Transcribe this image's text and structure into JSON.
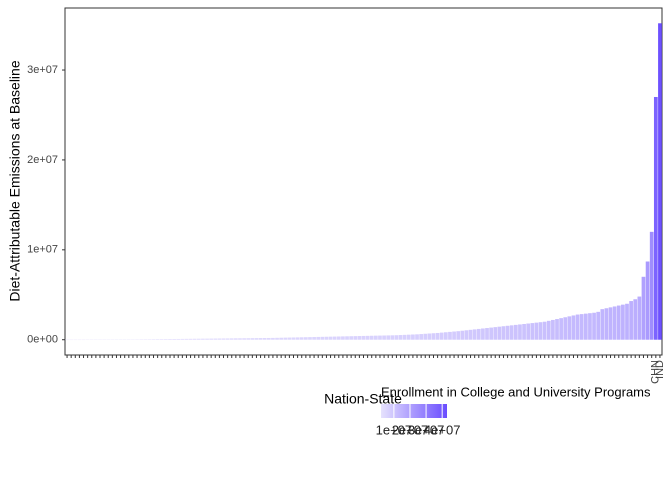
{
  "chart_data": {
    "type": "bar",
    "x_label": "Nation-State",
    "y_label": "Diet-Attributable Emissions at Baseline",
    "categories": [
      null,
      null,
      null,
      null,
      null,
      null,
      null,
      null,
      null,
      null,
      null,
      null,
      null,
      null,
      null,
      null,
      null,
      null,
      null,
      null,
      null,
      null,
      null,
      null,
      null,
      null,
      null,
      null,
      null,
      null,
      null,
      null,
      null,
      null,
      null,
      null,
      null,
      null,
      null,
      null,
      null,
      null,
      null,
      null,
      null,
      null,
      null,
      null,
      null,
      null,
      null,
      null,
      null,
      null,
      null,
      null,
      null,
      null,
      null,
      null,
      null,
      null,
      null,
      null,
      null,
      null,
      null,
      null,
      null,
      null,
      null,
      null,
      null,
      null,
      null,
      null,
      null,
      null,
      null,
      null,
      null,
      null,
      null,
      null,
      null,
      null,
      null,
      null,
      null,
      null,
      null,
      null,
      null,
      null,
      null,
      null,
      null,
      null,
      null,
      null,
      null,
      null,
      null,
      null,
      null,
      null,
      null,
      null,
      null,
      null,
      null,
      null,
      null,
      null,
      null,
      null,
      null,
      null,
      null,
      null,
      null,
      null,
      null,
      null,
      null,
      null,
      null,
      null,
      null,
      null,
      null,
      null,
      null,
      null,
      null,
      null,
      null,
      null,
      null,
      null,
      null,
      null,
      null,
      "CHN",
      "IND"
    ],
    "values": [
      0,
      0,
      0,
      0,
      0,
      1000,
      2000,
      3000,
      5000,
      8000,
      10000,
      12000,
      15000,
      18000,
      20000,
      25000,
      30000,
      35000,
      40000,
      45000,
      50000,
      55000,
      60000,
      65000,
      70000,
      75000,
      80000,
      85000,
      90000,
      95000,
      100000,
      105000,
      110000,
      115000,
      120000,
      125000,
      130000,
      135000,
      140000,
      145000,
      150000,
      155000,
      160000,
      165000,
      170000,
      175000,
      180000,
      185000,
      190000,
      195000,
      200000,
      210000,
      220000,
      230000,
      240000,
      250000,
      260000,
      270000,
      280000,
      290000,
      300000,
      310000,
      320000,
      330000,
      340000,
      350000,
      360000,
      370000,
      380000,
      390000,
      400000,
      410000,
      420000,
      430000,
      440000,
      450000,
      460000,
      470000,
      480000,
      490000,
      500000,
      520000,
      540000,
      560000,
      580000,
      600000,
      630000,
      660000,
      690000,
      720000,
      750000,
      790000,
      830000,
      870000,
      910000,
      950000,
      1000000,
      1050000,
      1100000,
      1150000,
      1200000,
      1250000,
      1300000,
      1350000,
      1400000,
      1450000,
      1500000,
      1550000,
      1600000,
      1650000,
      1700000,
      1750000,
      1800000,
      1850000,
      1900000,
      1950000,
      2000000,
      2100000,
      2200000,
      2300000,
      2400000,
      2500000,
      2600000,
      2700000,
      2800000,
      2850000,
      2900000,
      2950000,
      3000000,
      3100000,
      3400000,
      3500000,
      3600000,
      3700000,
      3800000,
      3900000,
      4000000,
      4300000,
      4500000,
      4800000,
      7000000,
      8700000,
      12000000,
      27000000,
      35200000
    ],
    "ylim": [
      -1700000,
      36900000
    ],
    "yticks": [
      {
        "value": 0,
        "label": "0e+00"
      },
      {
        "value": 10000000,
        "label": "1e+07"
      },
      {
        "value": 20000000,
        "label": "2e+07"
      },
      {
        "value": 30000000,
        "label": "3e+07"
      }
    ],
    "legend": {
      "title": "Enrollment in College and University Programs",
      "low_color": "#e6e2fd",
      "high_color": "#6a4dff",
      "lim": [
        2000000,
        43000000
      ],
      "ticks": [
        {
          "value": 10000000,
          "label": "1e+07"
        },
        {
          "value": 20000000,
          "label": "2e+07"
        },
        {
          "value": 30000000,
          "label": "3e+07"
        },
        {
          "value": 40000000,
          "label": "4e+07"
        }
      ]
    }
  }
}
